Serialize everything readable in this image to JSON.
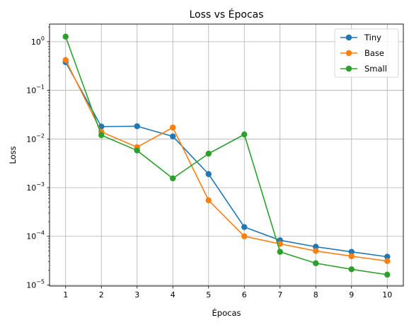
{
  "chart_data": {
    "type": "line",
    "title": "Loss vs Épocas",
    "xlabel": "Épocas",
    "ylabel": "Loss",
    "x": [
      1,
      2,
      3,
      4,
      5,
      6,
      7,
      8,
      9,
      10
    ],
    "yscale": "log",
    "ylim": [
      9.5e-06,
      2.3
    ],
    "xlim": [
      0.55,
      10.45
    ],
    "y_ticks": [
      1e-05,
      0.0001,
      0.001,
      0.01,
      0.1,
      1
    ],
    "y_tick_labels": [
      {
        "base": "10",
        "exp": "−5"
      },
      {
        "base": "10",
        "exp": "−4"
      },
      {
        "base": "10",
        "exp": "−3"
      },
      {
        "base": "10",
        "exp": "−2"
      },
      {
        "base": "10",
        "exp": "−1"
      },
      {
        "base": "10",
        "exp": "0"
      }
    ],
    "x_tick_labels": [
      "1",
      "2",
      "3",
      "4",
      "5",
      "6",
      "7",
      "8",
      "9",
      "10"
    ],
    "grid": true,
    "legend_position": "top-right",
    "series": [
      {
        "name": "Tiny",
        "color": "#1f77b4",
        "values": [
          0.38,
          0.018,
          0.0183,
          0.0113,
          0.0019,
          0.000155,
          8.3e-05,
          6.1e-05,
          4.8e-05,
          3.8e-05
        ]
      },
      {
        "name": "Base",
        "color": "#ff7f0e",
        "values": [
          0.42,
          0.014,
          0.0068,
          0.0172,
          0.00055,
          0.0001,
          7e-05,
          5e-05,
          3.9e-05,
          3.1e-05
        ]
      },
      {
        "name": "Small",
        "color": "#2ca02c",
        "values": [
          1.27,
          0.012,
          0.0058,
          0.00155,
          0.005,
          0.0124,
          4.8e-05,
          2.8e-05,
          2.1e-05,
          1.63e-05
        ]
      }
    ]
  }
}
